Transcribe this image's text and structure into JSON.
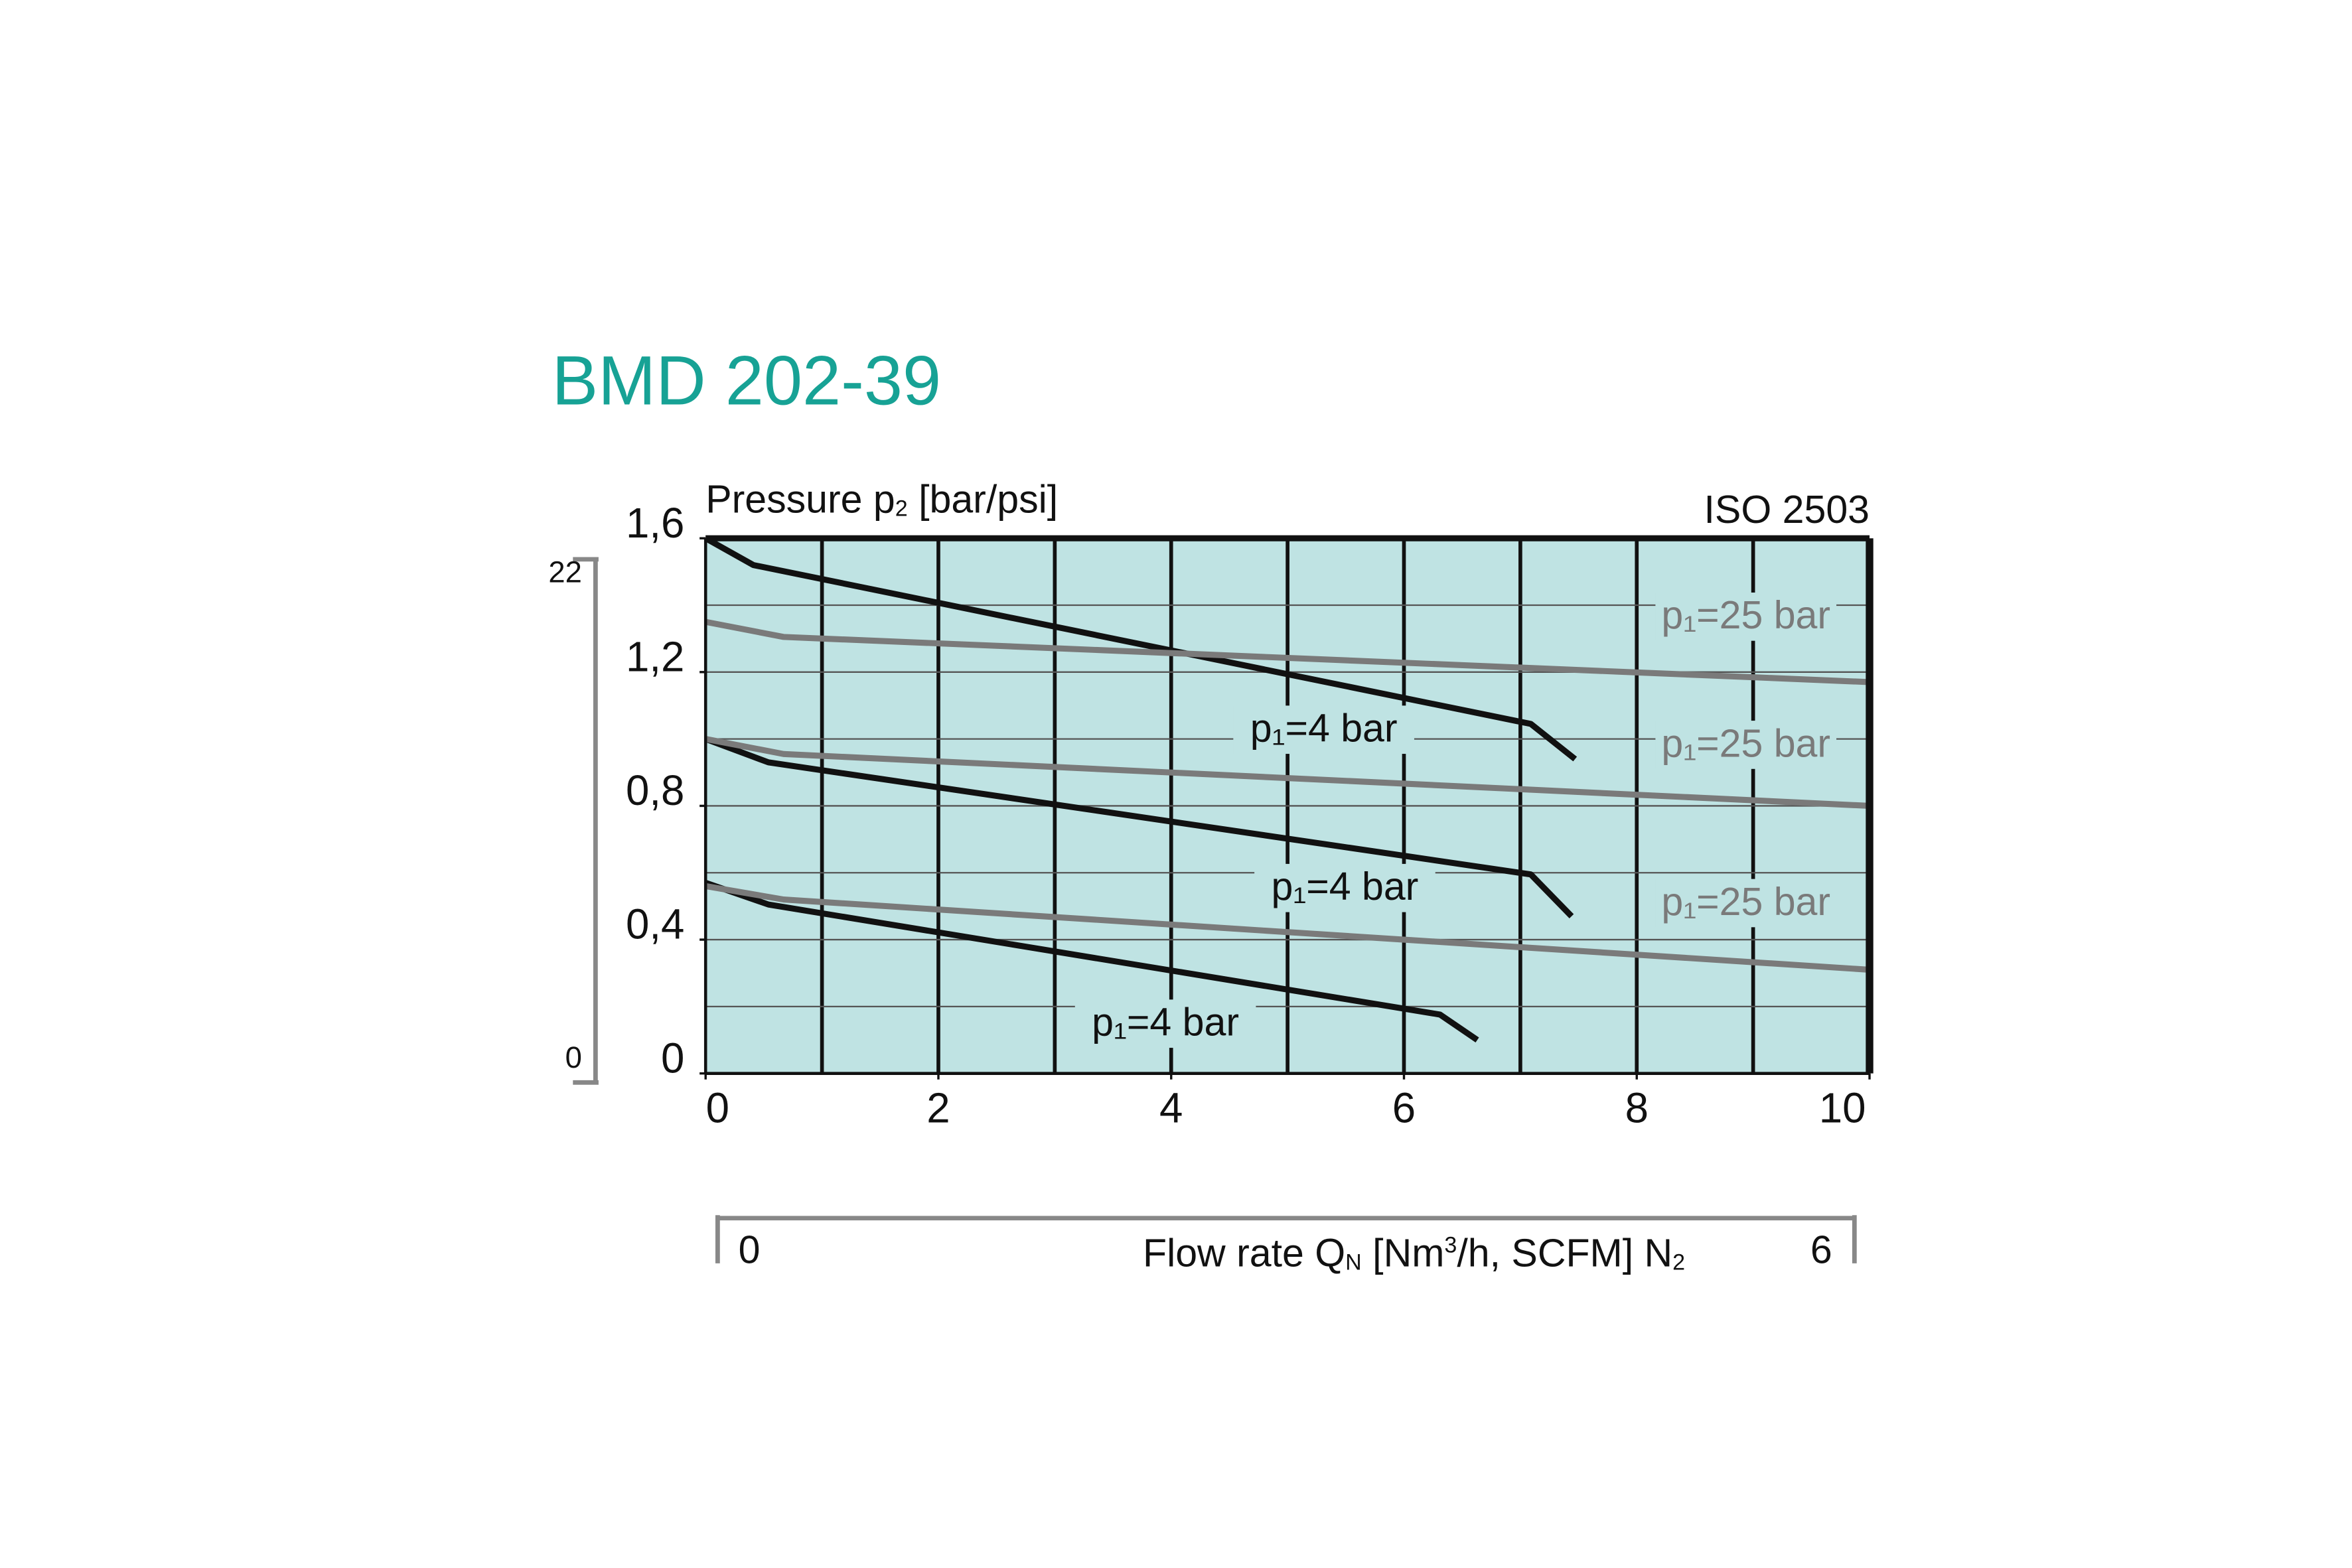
{
  "chart_data": {
    "type": "line",
    "title": "BMD 202-39",
    "y_label": [
      "Pressure  p",
      "2",
      " [bar/psi]"
    ],
    "standard": "ISO 2503",
    "x_label": [
      "Flow rate Q",
      "N",
      " [Nm",
      "3",
      "/h, SCFM] N",
      "2"
    ],
    "xlim": [
      0,
      10
    ],
    "xticks": [
      0,
      2,
      4,
      6,
      8,
      10
    ],
    "ylim": [
      0,
      1.6
    ],
    "yticks": [
      0,
      {
        "value": 0.4,
        "label": "0,4"
      },
      {
        "value": 0.8,
        "label": "0,8"
      },
      {
        "value": 1.2,
        "label": "1,2"
      },
      {
        "value": 1.6,
        "label": "1,6"
      }
    ],
    "y2lim": [
      0,
      23.2
    ],
    "y2ticks": [
      0,
      22
    ],
    "x2lim": [
      0,
      6
    ],
    "x2ticks": [
      0,
      6
    ],
    "grid": true,
    "series": [
      {
        "name": "p₁=4 bar",
        "color": "#111111",
        "x": [
          0,
          0.41,
          7.09,
          7.47
        ],
        "values": [
          1.6,
          1.52,
          1.045,
          0.94
        ]
      },
      {
        "name": "p₁=4 bar",
        "color": "#111111",
        "x": [
          0,
          0.54,
          7.09,
          7.44
        ],
        "values": [
          1.0,
          0.93,
          0.595,
          0.47
        ]
      },
      {
        "name": "p₁=4 bar",
        "color": "#111111",
        "x": [
          0,
          0.54,
          6.31,
          6.63
        ],
        "values": [
          0.57,
          0.505,
          0.176,
          0.1
        ]
      },
      {
        "name": "p₁=25 bar",
        "color": "#7a7a7a",
        "x": [
          0,
          0.67,
          10
        ],
        "values": [
          1.35,
          1.305,
          1.17
        ]
      },
      {
        "name": "p₁=25 bar",
        "color": "#7a7a7a",
        "x": [
          0,
          0.67,
          10
        ],
        "values": [
          1.0,
          0.955,
          0.8
        ]
      },
      {
        "name": "p₁=25 bar",
        "color": "#7a7a7a",
        "x": [
          0,
          0.67,
          10
        ],
        "values": [
          0.56,
          0.52,
          0.31
        ]
      }
    ]
  }
}
